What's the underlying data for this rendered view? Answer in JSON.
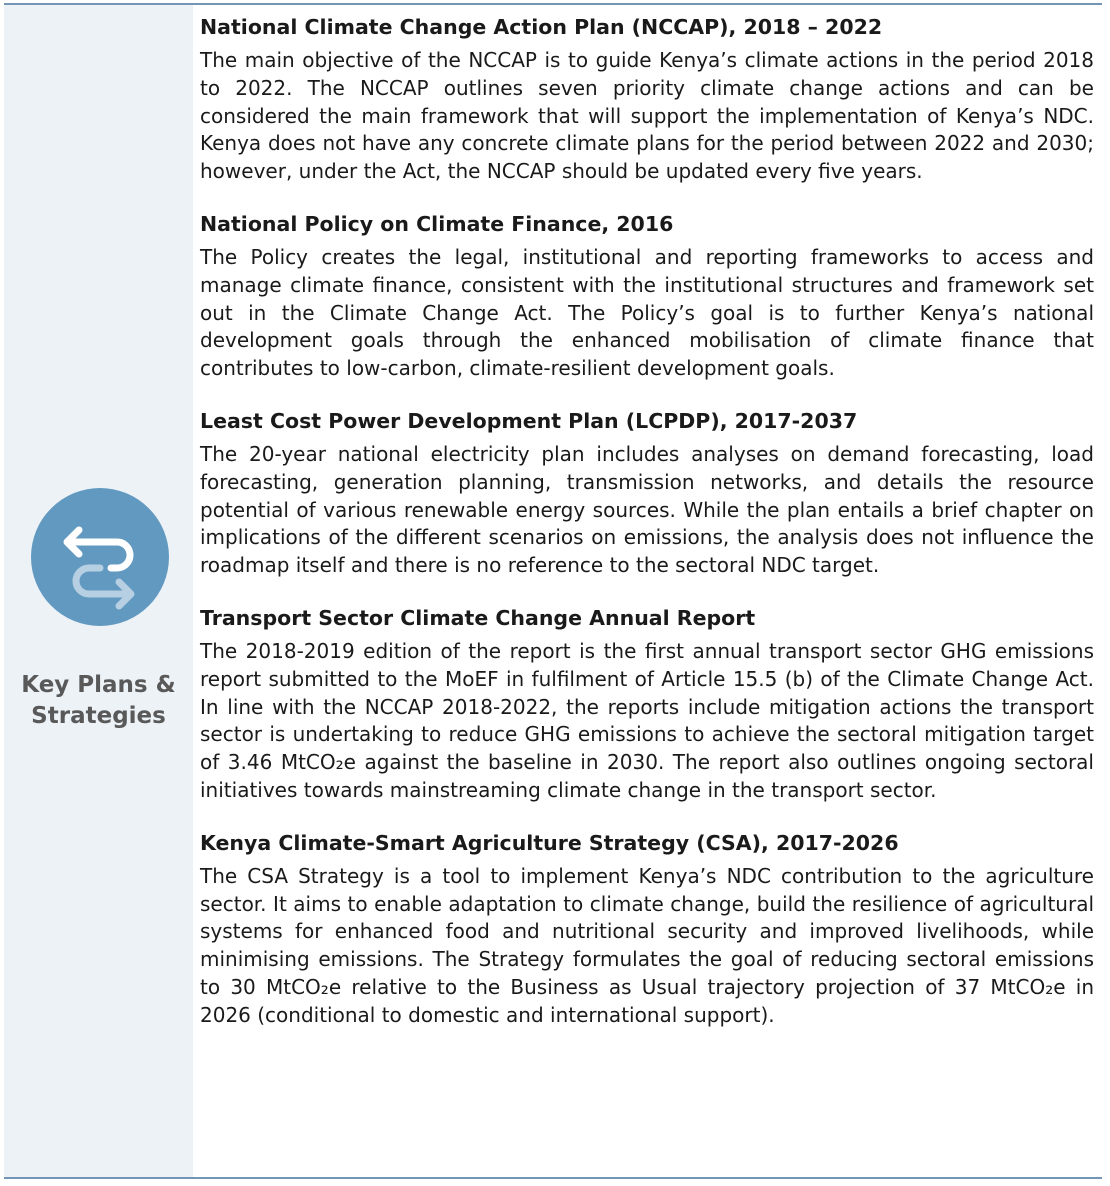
{
  "sidebar": {
    "label": "Key Plans & Strategies",
    "icon": "swap-arrows-icon",
    "colors": {
      "panel": "#edf2f7",
      "icon_bg": "#6199c0",
      "border": "#7396b6"
    }
  },
  "sections": [
    {
      "title": "National Climate Change Action Plan (NCCAP), 2018 – 2022",
      "body": "The main objective of the NCCAP is to guide Kenya’s climate actions in the period 2018 to 2022. The NCCAP outlines seven priority climate change actions and can be considered the main framework that will support the implementation of Kenya’s NDC. Kenya does not have any concrete climate plans for the period between 2022 and 2030; however, under the Act, the NCCAP should be updated every five years."
    },
    {
      "title": "National Policy on Climate Finance, 2016",
      "body": "The Policy creates the legal, institutional and reporting frameworks to access and manage climate finance, consistent with the institutional structures and framework set out in the Climate Change Act. The Policy’s goal is to further Kenya’s national development goals through the enhanced mobilisation of climate finance that contributes to low-carbon, climate-resilient development goals."
    },
    {
      "title": "Least Cost Power Development Plan (LCPDP), 2017-2037",
      "body": "The 20-year national electricity plan includes analyses on demand forecasting, load forecasting, generation planning, transmission networks, and details the resource potential of various renewable energy sources. While the plan entails a brief chapter on implications of the different scenarios on emissions, the analysis does not influence the roadmap itself and there is no reference to the sectoral NDC target."
    },
    {
      "title": "Transport Sector Climate Change Annual Report",
      "body": "The 2018-2019 edition of the report is the first annual transport sector GHG emissions report submitted to the MoEF in fulfilment of Article 15.5 (b) of the Climate Change Act. In line with the NCCAP 2018-2022, the reports include mitigation actions the transport sector is undertaking to reduce GHG emissions to achieve the sectoral mitigation target of 3.46 MtCO₂e against the baseline in 2030. The report also outlines ongoing sectoral initiatives towards mainstreaming climate change in the transport sector."
    },
    {
      "title": "Kenya Climate-Smart Agriculture Strategy (CSA), 2017-2026",
      "body": "The CSA Strategy is a tool to implement Kenya’s NDC contribution to the agriculture sector. It aims to enable adaptation to climate change, build the resilience of agricultural systems for enhanced food and nutritional security and improved livelihoods, while minimising emissions. The Strategy formulates the goal of reducing sectoral emissions to 30 MtCO₂e relative to the Business as Usual trajectory projection of 37 MtCO₂e in 2026 (conditional to domestic and international support)."
    }
  ]
}
